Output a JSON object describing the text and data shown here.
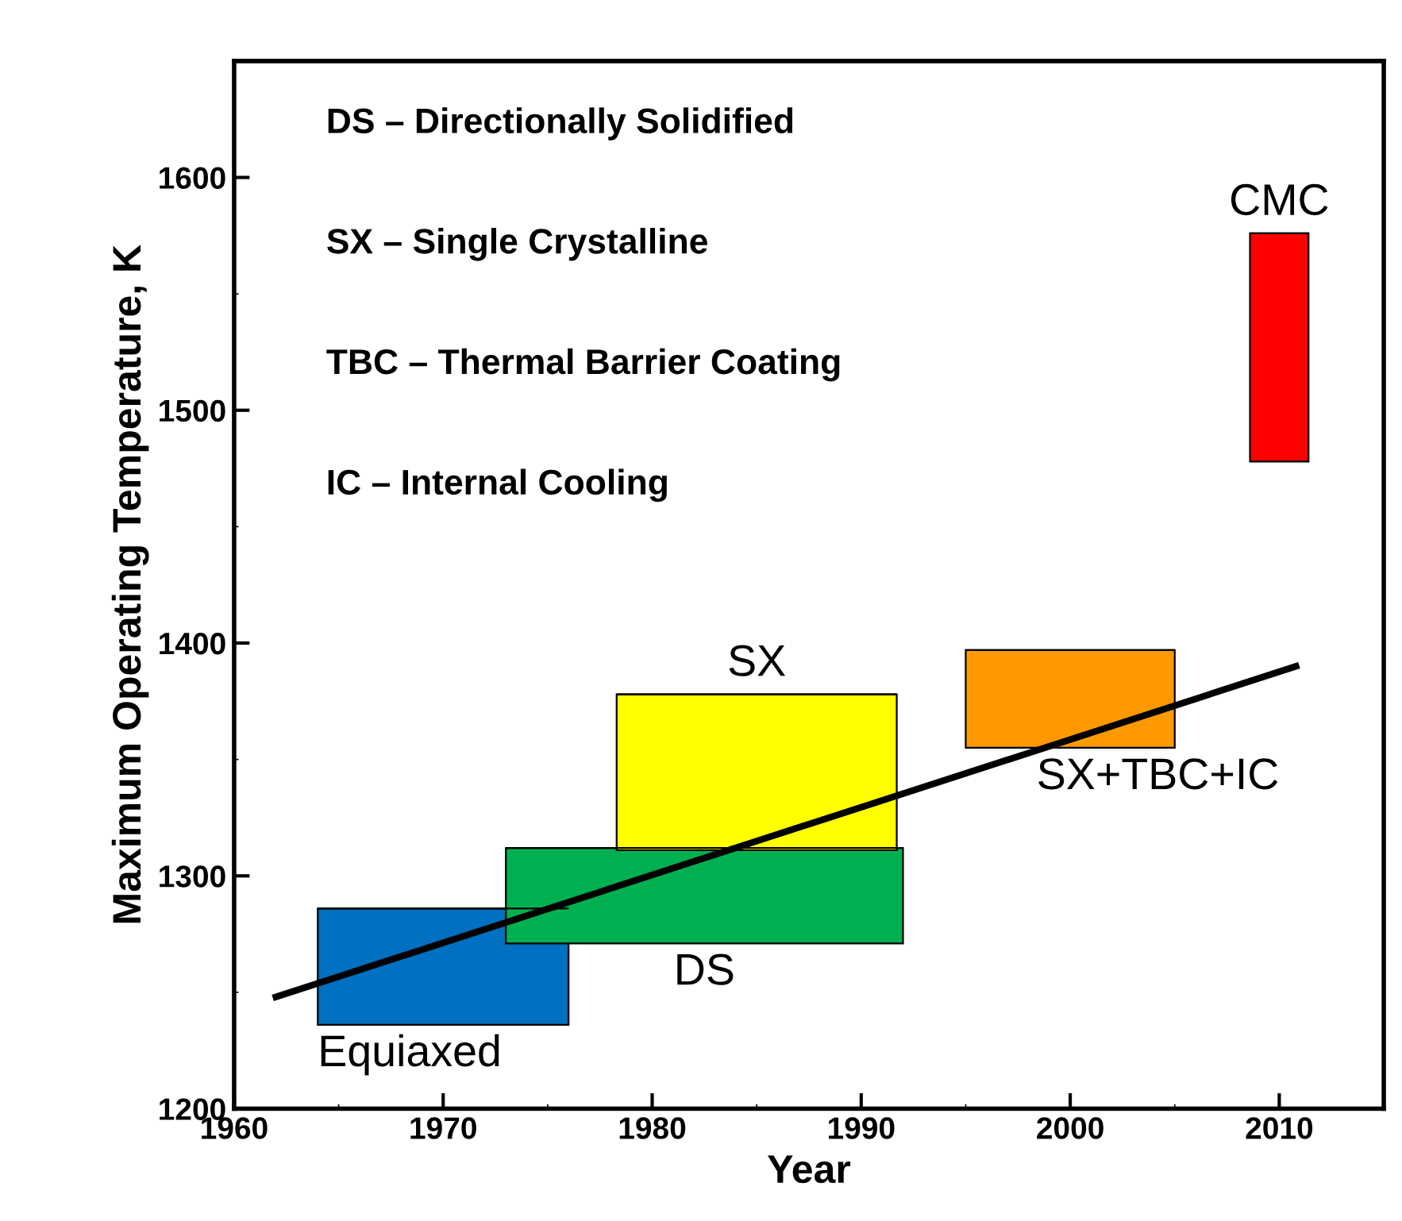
{
  "chart_data": {
    "type": "bar",
    "xlabel": "Year",
    "ylabel": "Maximum Operating Temperature, K",
    "annotations": [
      "DS – Directionally Solidified",
      "SX – Single Crystalline",
      "TBC – Thermal Barrier Coating",
      "IC – Internal Cooling"
    ],
    "xlim": [
      1960,
      2015
    ],
    "xticks": [
      1960,
      1970,
      1980,
      1990,
      2000,
      2010
    ],
    "ylim": [
      1200,
      1650
    ],
    "yticks": [
      1200,
      1300,
      1400,
      1500,
      1600
    ],
    "series": [
      {
        "name": "Equiaxed",
        "color": "#0070c0",
        "x": [
          1970
        ],
        "base": [
          1236
        ],
        "values": [
          50
        ],
        "xerrors": [
          6
        ]
      },
      {
        "name": "DS",
        "color": "#00b050",
        "x": [
          1982.5
        ],
        "base": [
          1271
        ],
        "values": [
          41
        ],
        "xerrors": [
          9.5
        ]
      },
      {
        "name": "SX",
        "color": "#ffff00",
        "x": [
          1985
        ],
        "base": [
          1311
        ],
        "values": [
          67
        ],
        "xerrors": [
          6.7
        ]
      },
      {
        "name": "SX+TBC+IC",
        "color": "#ff9900",
        "x": [
          2000
        ],
        "base": [
          1355
        ],
        "values": [
          42
        ],
        "xerrors": [
          5
        ]
      },
      {
        "name": "CMC",
        "color": "#ff0000",
        "x": [
          2010
        ],
        "base": [
          1478
        ],
        "values": [
          98
        ],
        "xerrors": [
          1.4
        ]
      },
      {
        "type": "line",
        "color": "#000000",
        "x": [
          1962,
          2010.8
        ],
        "values": [
          1248,
          1390
        ]
      }
    ]
  }
}
